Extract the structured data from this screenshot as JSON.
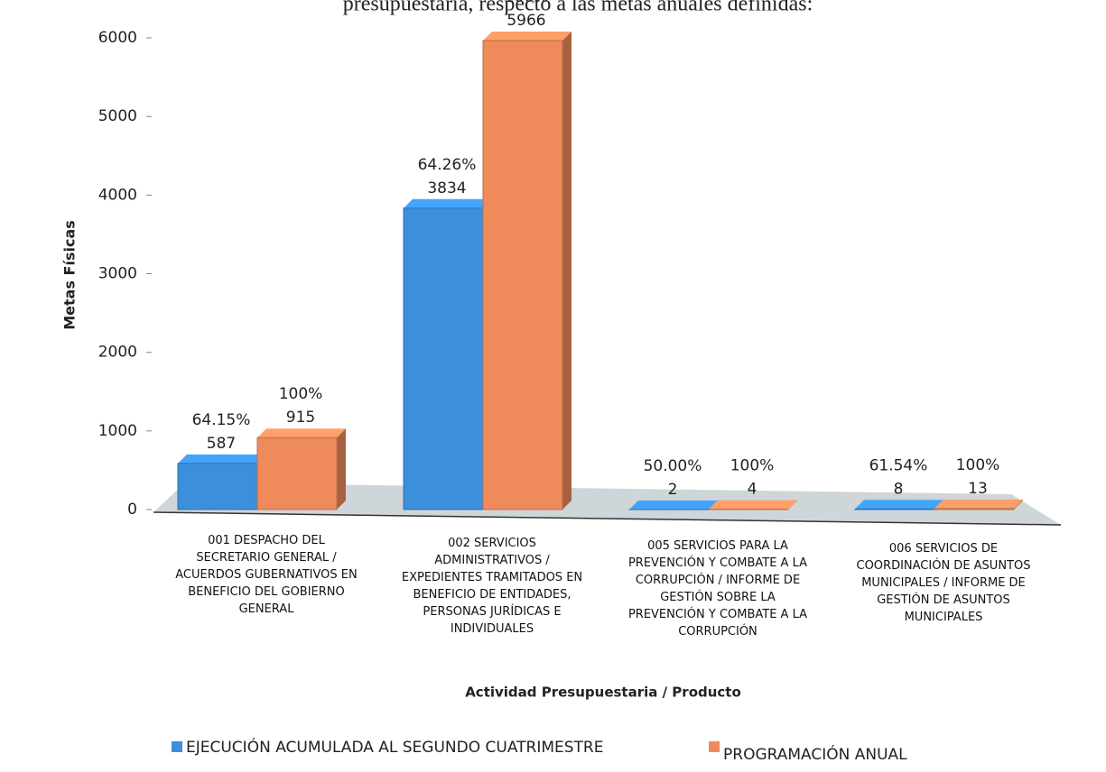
{
  "chart_data": {
    "type": "bar",
    "heading": "presupuestaria, respecto a las metas anuales definidas:",
    "ylabel": "Metas Físicas",
    "xlabel": "Actividad Presupuestaria / Producto",
    "categories": [
      "001 DESPACHO DEL SECRETARIO GENERAL / ACUERDOS GUBERNATIVOS EN BENEFICIO DEL GOBIERNO GENERAL",
      "002 SERVICIOS ADMINISTRATIVOS / EXPEDIENTES TRAMITADOS EN BENEFICIO DE ENTIDADES, PERSONAS JURÍDICAS E INDIVIDUALES",
      "005 SERVICIOS PARA LA PREVENCIÓN Y COMBATE A LA CORRUPCIÓN / INFORME DE GESTIÓN SOBRE LA PREVENCIÓN Y COMBATE A LA CORRUPCIÓN",
      "006 SERVICIOS DE COORDINACIÓN DE ASUNTOS MUNICIPALES / INFORME DE GESTIÓN DE ASUNTOS MUNICIPALES"
    ],
    "series": [
      {
        "name": "EJECUCIÓN ACUMULADA AL SEGUNDO CUATRIMESTRE",
        "color": "#3b8fdb",
        "values": [
          587,
          3834,
          2,
          8
        ],
        "percent_labels": [
          "64.15%",
          "64.26%",
          "50.00%",
          "61.54%"
        ]
      },
      {
        "name": "PROGRAMACIÓN ANUAL",
        "color": "#ef8a5b",
        "values": [
          915,
          5966,
          4,
          13
        ],
        "percent_labels": [
          "100%",
          "100%",
          "100%",
          "100%"
        ]
      }
    ],
    "ylim": [
      0,
      6000
    ],
    "yticks": [
      0,
      1000,
      2000,
      3000,
      4000,
      5000,
      6000
    ],
    "legend": "bottom"
  }
}
